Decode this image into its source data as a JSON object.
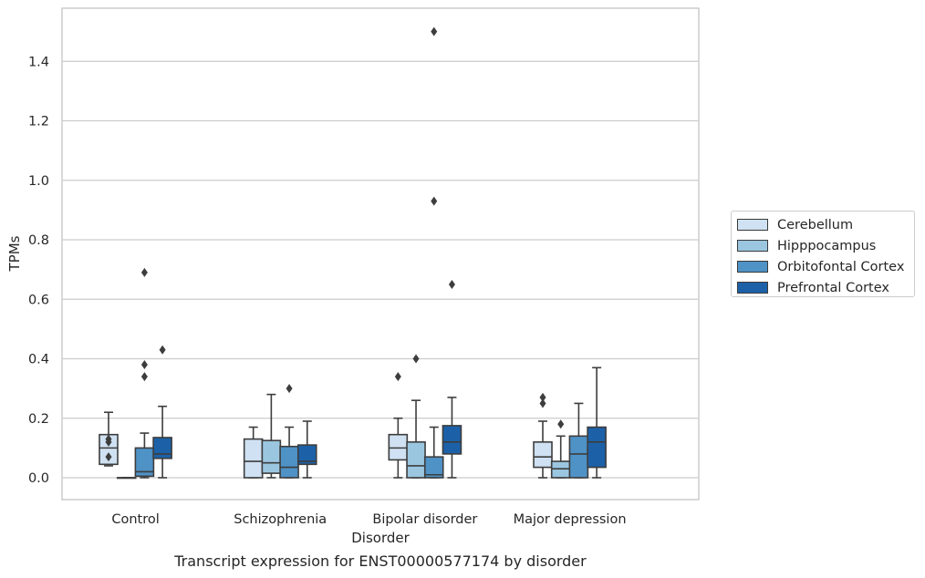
{
  "caption": "Transcript expression for ENST00000577174 by disorder",
  "colors": {
    "Cerebellum": "#cfe1f2",
    "Hipppocampus": "#9bc6e0",
    "Orbitofontal Cortex": "#4f92c6",
    "Prefrontal Cortex": "#1c61a8",
    "box_edge": "#3d3d3d",
    "grid": "#cccccc",
    "axes_frame": "#cccccc"
  },
  "chart_data": {
    "type": "boxplot",
    "xlabel": "Disorder",
    "ylabel": "TPMs",
    "ylim": [
      -0.07,
      1.57
    ],
    "yticks": [
      0.0,
      0.2,
      0.4,
      0.6,
      0.8,
      1.0,
      1.2,
      1.4
    ],
    "ytick_labels": [
      "0.0",
      "0.2",
      "0.4",
      "0.6",
      "0.8",
      "1.0",
      "1.2",
      "1.4"
    ],
    "grid": "horizontal",
    "legend_position": "outside-right",
    "categories": [
      "Control",
      "Schizophrenia",
      "Bipolar disorder",
      "Major depression"
    ],
    "series": [
      {
        "name": "Cerebellum",
        "boxes": [
          {
            "whislo": 0.04,
            "q1": 0.045,
            "med": 0.1,
            "q3": 0.145,
            "whishi": 0.22,
            "fliers": [
              0.07,
              0.12,
              0.13
            ]
          },
          {
            "whislo": 0.0,
            "q1": 0.0,
            "med": 0.055,
            "q3": 0.13,
            "whishi": 0.17,
            "fliers": []
          },
          {
            "whislo": 0.0,
            "q1": 0.06,
            "med": 0.1,
            "q3": 0.145,
            "whishi": 0.2,
            "fliers": [
              0.34
            ]
          },
          {
            "whislo": 0.0,
            "q1": 0.035,
            "med": 0.07,
            "q3": 0.12,
            "whishi": 0.19,
            "fliers": [
              0.25,
              0.27
            ]
          }
        ]
      },
      {
        "name": "Hipppocampus",
        "boxes": [
          {
            "whislo": 0.0,
            "q1": 0.0,
            "med": 0.0,
            "q3": 0.0,
            "whishi": 0.0,
            "fliers": []
          },
          {
            "whislo": 0.0,
            "q1": 0.015,
            "med": 0.05,
            "q3": 0.125,
            "whishi": 0.28,
            "fliers": []
          },
          {
            "whislo": 0.0,
            "q1": 0.0,
            "med": 0.04,
            "q3": 0.12,
            "whishi": 0.26,
            "fliers": [
              0.4
            ]
          },
          {
            "whislo": 0.0,
            "q1": 0.0,
            "med": 0.03,
            "q3": 0.055,
            "whishi": 0.14,
            "fliers": [
              0.18
            ]
          }
        ]
      },
      {
        "name": "Orbitofontal Cortex",
        "boxes": [
          {
            "whislo": 0.0,
            "q1": 0.005,
            "med": 0.02,
            "q3": 0.1,
            "whishi": 0.15,
            "fliers": [
              0.34,
              0.38,
              0.69
            ]
          },
          {
            "whislo": 0.0,
            "q1": 0.0,
            "med": 0.035,
            "q3": 0.105,
            "whishi": 0.17,
            "fliers": [
              0.3
            ]
          },
          {
            "whislo": 0.0,
            "q1": 0.0,
            "med": 0.01,
            "q3": 0.07,
            "whishi": 0.17,
            "fliers": [
              0.93,
              1.5
            ]
          },
          {
            "whislo": 0.0,
            "q1": 0.0,
            "med": 0.08,
            "q3": 0.14,
            "whishi": 0.25,
            "fliers": []
          }
        ]
      },
      {
        "name": "Prefrontal Cortex",
        "boxes": [
          {
            "whislo": 0.0,
            "q1": 0.065,
            "med": 0.08,
            "q3": 0.135,
            "whishi": 0.24,
            "fliers": [
              0.43
            ]
          },
          {
            "whislo": 0.0,
            "q1": 0.045,
            "med": 0.055,
            "q3": 0.11,
            "whishi": 0.19,
            "fliers": []
          },
          {
            "whislo": 0.0,
            "q1": 0.08,
            "med": 0.12,
            "q3": 0.175,
            "whishi": 0.27,
            "fliers": [
              0.65
            ]
          },
          {
            "whislo": 0.0,
            "q1": 0.035,
            "med": 0.12,
            "q3": 0.17,
            "whishi": 0.37,
            "fliers": []
          }
        ]
      }
    ]
  }
}
